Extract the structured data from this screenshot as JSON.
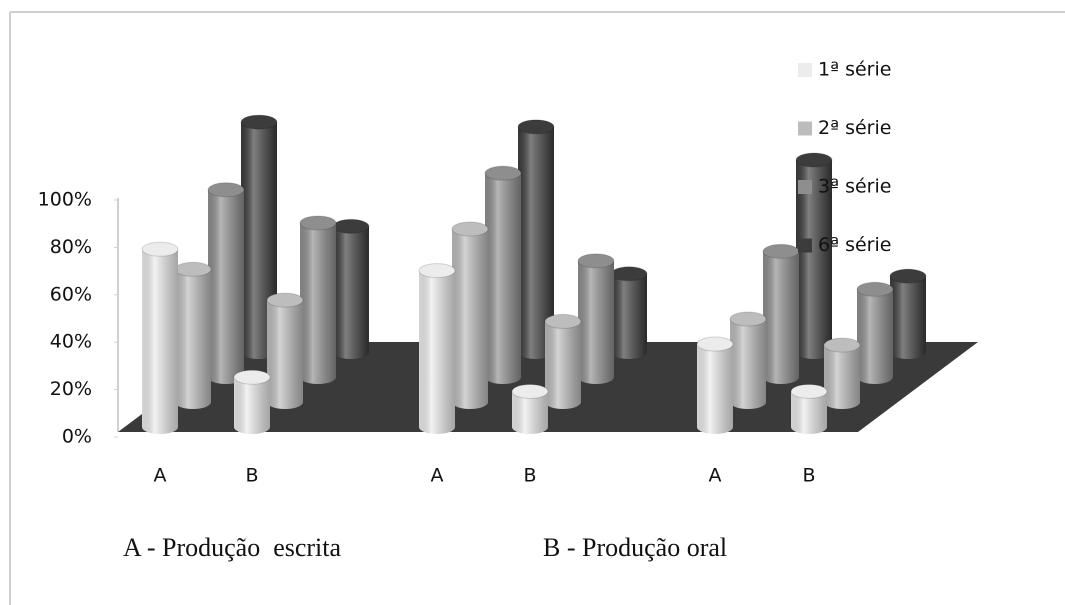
{
  "chart_data": {
    "type": "bar3d",
    "categories": [
      "A",
      "B",
      "A",
      "B",
      "A",
      "B"
    ],
    "series": [
      {
        "name": "1ª série",
        "color": "#ececec",
        "values": [
          75,
          21,
          66,
          15,
          35,
          15
        ]
      },
      {
        "name": "2ª série",
        "color": "#bdbdbd",
        "values": [
          56,
          43,
          73,
          34,
          35,
          24
        ]
      },
      {
        "name": "3ª série",
        "color": "#8e8e8e",
        "values": [
          79,
          65,
          86,
          49,
          53,
          37
        ]
      },
      {
        "name": "6ª série",
        "color": "#3c3c3c",
        "values": [
          97,
          53,
          95,
          33,
          81,
          32
        ]
      }
    ],
    "ylim": [
      0,
      100
    ],
    "yticks": [
      {
        "value": 0,
        "label": "0%"
      },
      {
        "value": 20,
        "label": "20%"
      },
      {
        "value": 40,
        "label": "40%"
      },
      {
        "value": 60,
        "label": "60%"
      },
      {
        "value": 80,
        "label": "80%"
      },
      {
        "value": 100,
        "label": "100%"
      }
    ],
    "grid": false,
    "legend": "right",
    "annotations": [
      "A - Produção  escrita",
      "B - Produção oral"
    ]
  }
}
